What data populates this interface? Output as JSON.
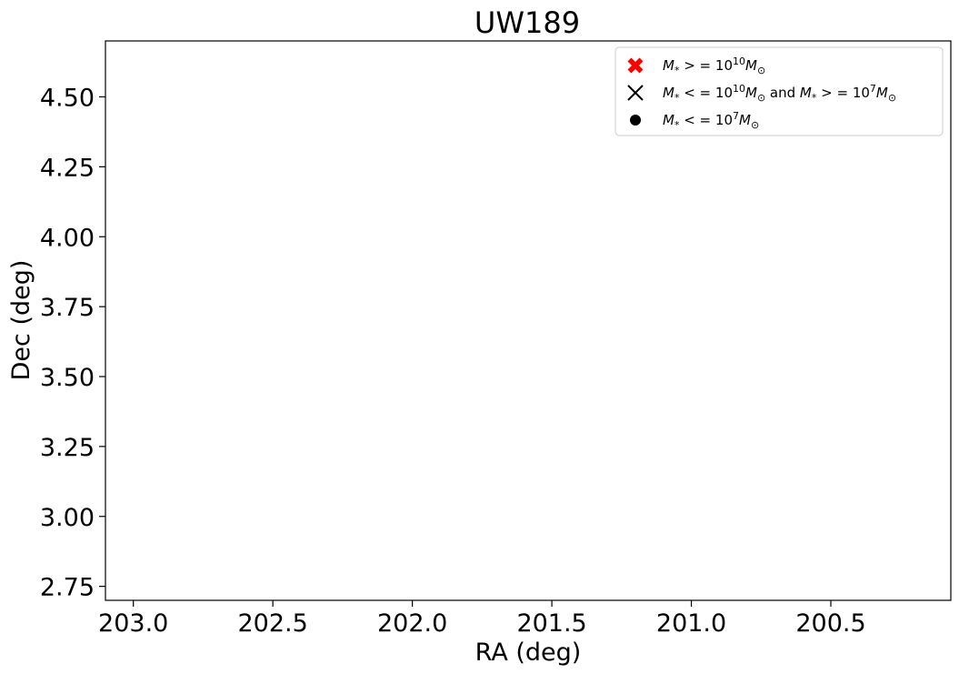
{
  "chart_data": {
    "type": "scatter",
    "title": "UW189",
    "xlabel": "RA (deg)",
    "ylabel": "Dec (deg)",
    "x_inverted": true,
    "xlim": [
      203.1,
      200.07
    ],
    "ylim": [
      2.7,
      4.7
    ],
    "xticks": [
      {
        "value": 203.0,
        "label": "203.0"
      },
      {
        "value": 202.5,
        "label": "202.5"
      },
      {
        "value": 202.0,
        "label": "202.0"
      },
      {
        "value": 201.5,
        "label": "201.5"
      },
      {
        "value": 201.0,
        "label": "201.0"
      },
      {
        "value": 200.5,
        "label": "200.5"
      }
    ],
    "yticks": [
      {
        "value": 2.75,
        "label": "2.75"
      },
      {
        "value": 3.0,
        "label": "3.00"
      },
      {
        "value": 3.25,
        "label": "3.25"
      },
      {
        "value": 3.5,
        "label": "3.50"
      },
      {
        "value": 3.75,
        "label": "3.75"
      },
      {
        "value": 4.0,
        "label": "4.00"
      },
      {
        "value": 4.25,
        "label": "4.25"
      },
      {
        "value": 4.5,
        "label": "4.50"
      }
    ],
    "grid": false,
    "legend_placement": "top-right",
    "series": [
      {
        "marker": "thick-x",
        "color": "#ff0000",
        "legend": {
          "lhs": "M",
          "sub": "*",
          "op": " > = 10",
          "exp": "10",
          "unit": "M",
          "unit_sub": "⊙",
          "mid": "",
          "lhs2": "",
          "sub2": "",
          "op2": "",
          "exp2": "",
          "unit2": "",
          "unit_sub2": ""
        },
        "points": []
      },
      {
        "marker": "x",
        "color": "#000000",
        "legend": {
          "lhs": "M",
          "sub": "*",
          "op": " < = 10",
          "exp": "10",
          "unit": "M",
          "unit_sub": "⊙",
          "mid": " and ",
          "lhs2": "M",
          "sub2": "*",
          "op2": " > = 10",
          "exp2": "7",
          "unit2": "M",
          "unit_sub2": "⊙"
        },
        "points": []
      },
      {
        "marker": "circle",
        "color": "#000000",
        "legend": {
          "lhs": "M",
          "sub": "*",
          "op": " < = 10",
          "exp": "7",
          "unit": "M",
          "unit_sub": "⊙",
          "mid": "",
          "lhs2": "",
          "sub2": "",
          "op2": "",
          "exp2": "",
          "unit2": "",
          "unit_sub2": ""
        },
        "points": []
      }
    ]
  }
}
